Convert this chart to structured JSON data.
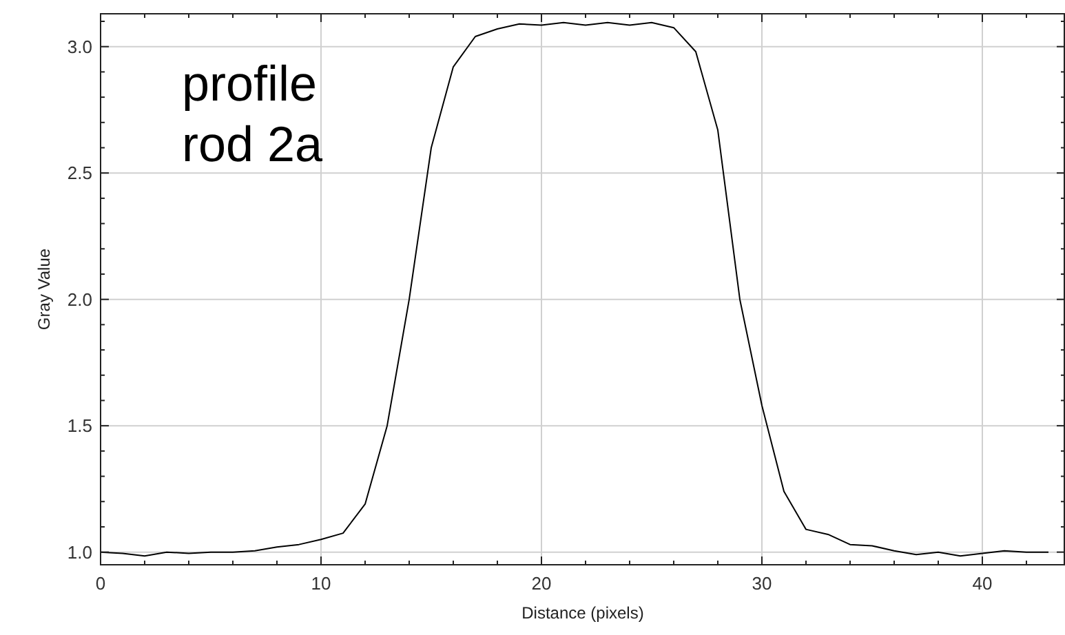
{
  "chart_data": {
    "type": "line",
    "xlabel": "Distance (pixels)",
    "ylabel": "Gray Value",
    "annotations": [
      "profile\nrod 2a"
    ],
    "x": [
      0,
      1,
      2,
      3,
      4,
      5,
      6,
      7,
      8,
      9,
      10,
      11,
      12,
      13,
      14,
      15,
      16,
      17,
      18,
      19,
      20,
      21,
      22,
      23,
      24,
      25,
      26,
      27,
      28,
      29,
      30,
      31,
      32,
      33,
      34,
      35,
      36,
      37,
      38,
      39,
      40,
      41,
      42,
      43
    ],
    "series": [
      {
        "color": "#000000",
        "values": [
          1.0,
          0.995,
          0.985,
          1.0,
          0.995,
          1.0,
          1.0,
          1.005,
          1.02,
          1.03,
          1.05,
          1.075,
          1.19,
          1.5,
          2.0,
          2.6,
          2.92,
          3.04,
          3.07,
          3.09,
          3.085,
          3.095,
          3.085,
          3.095,
          3.085,
          3.095,
          3.075,
          2.98,
          2.67,
          2.0,
          1.58,
          1.24,
          1.09,
          1.07,
          1.03,
          1.025,
          1.005,
          0.99,
          1.0,
          0.985,
          0.995,
          1.005,
          1.0,
          1.0
        ]
      }
    ],
    "xlim": [
      0,
      43.75
    ],
    "xticks": [
      0,
      {
        "value": 2,
        "label": null
      },
      {
        "value": 4,
        "label": null
      },
      {
        "value": 6,
        "label": null
      },
      {
        "value": 8,
        "label": null
      },
      10,
      {
        "value": 12,
        "label": null
      },
      {
        "value": 14,
        "label": null
      },
      {
        "value": 16,
        "label": null
      },
      {
        "value": 18,
        "label": null
      },
      20,
      {
        "value": 22,
        "label": null
      },
      {
        "value": 24,
        "label": null
      },
      {
        "value": 26,
        "label": null
      },
      {
        "value": 28,
        "label": null
      },
      30,
      {
        "value": 32,
        "label": null
      },
      {
        "value": 34,
        "label": null
      },
      {
        "value": 36,
        "label": null
      },
      {
        "value": 38,
        "label": null
      },
      40,
      {
        "value": 42,
        "label": null
      }
    ],
    "ylim": [
      0.95,
      3.13
    ],
    "yticks": [
      {
        "value": 1,
        "label": "1.0"
      },
      {
        "value": 1.1,
        "label": null
      },
      {
        "value": 1.2,
        "label": null
      },
      {
        "value": 1.3,
        "label": null
      },
      {
        "value": 1.4,
        "label": null
      },
      1.5,
      {
        "value": 1.6,
        "label": null
      },
      {
        "value": 1.7,
        "label": null
      },
      {
        "value": 1.8,
        "label": null
      },
      {
        "value": 1.9,
        "label": null
      },
      {
        "value": 2,
        "label": "2.0"
      },
      {
        "value": 2.1,
        "label": null
      },
      {
        "value": 2.2,
        "label": null
      },
      {
        "value": 2.3,
        "label": null
      },
      {
        "value": 2.4,
        "label": null
      },
      2.5,
      {
        "value": 2.6,
        "label": null
      },
      {
        "value": 2.7,
        "label": null
      },
      {
        "value": 2.8,
        "label": null
      },
      {
        "value": 2.9,
        "label": null
      },
      {
        "value": 3,
        "label": "3.0"
      },
      {
        "value": 3.1,
        "label": null
      }
    ],
    "grid": true,
    "line_style": "solid",
    "marker": "none"
  }
}
